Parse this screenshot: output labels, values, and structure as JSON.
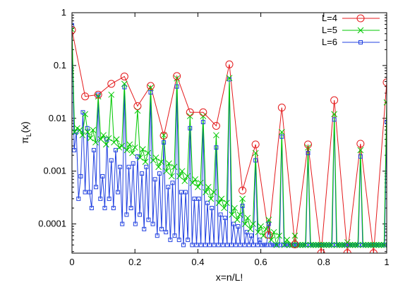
{
  "chart_data": {
    "type": "line",
    "xlabel": "x=n/L!",
    "ylabel_main": "π",
    "ylabel_sub": "L",
    "ylabel_arg": "(x)",
    "xlim": [
      0,
      1
    ],
    "ylim": [
      2.8e-05,
      1
    ],
    "yscale": "log",
    "legend_position": "top-right",
    "x_ticks": [
      {
        "value": 0,
        "label": "0"
      },
      {
        "value": 0.2,
        "label": "0.2"
      },
      {
        "value": 0.4,
        "label": "0.4"
      },
      {
        "value": 0.6,
        "label": "0.6"
      },
      {
        "value": 0.8,
        "label": "0.8"
      },
      {
        "value": 1,
        "label": "1"
      }
    ],
    "y_ticks": [
      {
        "value": 1,
        "label": "1"
      },
      {
        "value": 0.1,
        "label": "0.1"
      },
      {
        "value": 0.01,
        "label": "0.01"
      },
      {
        "value": 0.001,
        "label": "0.001"
      },
      {
        "value": 0.0001,
        "label": "0.0001"
      }
    ],
    "series": [
      {
        "name": "L=4",
        "color": "#e41a1c",
        "marker": "circle",
        "x": [
          0,
          0.0417,
          0.0833,
          0.125,
          0.1667,
          0.2083,
          0.25,
          0.2917,
          0.3333,
          0.375,
          0.4167,
          0.4583,
          0.5,
          0.5417,
          0.5833,
          0.625,
          0.6667,
          0.7083,
          0.75,
          0.7917,
          0.8333,
          0.875,
          0.9167,
          0.9583,
          1.0
        ],
        "y": [
          0.47,
          0.026,
          0.028,
          0.045,
          0.062,
          0.017,
          0.041,
          0.0047,
          0.063,
          0.013,
          0.013,
          0.0072,
          0.105,
          0.00043,
          0.0032,
          6.2e-05,
          0.016,
          4.1e-05,
          0.0032,
          2.8e-05,
          0.022,
          2.8e-05,
          0.0033,
          2.8e-05,
          0.048
        ]
      },
      {
        "name": "L=5",
        "color": "#00c800",
        "marker": "x",
        "x": [
          0,
          0.0083,
          0.0167,
          0.025,
          0.0333,
          0.0417,
          0.05,
          0.0583,
          0.0667,
          0.075,
          0.0833,
          0.0917,
          0.1,
          0.1083,
          0.1167,
          0.125,
          0.1333,
          0.1417,
          0.15,
          0.1583,
          0.1667,
          0.175,
          0.1833,
          0.1917,
          0.2,
          0.2083,
          0.2167,
          0.225,
          0.2333,
          0.2417,
          0.25,
          0.2583,
          0.2667,
          0.275,
          0.2833,
          0.2917,
          0.3,
          0.3083,
          0.3167,
          0.325,
          0.3333,
          0.3417,
          0.35,
          0.3583,
          0.3667,
          0.375,
          0.3833,
          0.3917,
          0.4,
          0.4083,
          0.4167,
          0.425,
          0.4333,
          0.4417,
          0.45,
          0.4583,
          0.4667,
          0.475,
          0.4833,
          0.4917,
          0.5,
          0.5083,
          0.5167,
          0.525,
          0.5333,
          0.5417,
          0.55,
          0.5583,
          0.5667,
          0.575,
          0.5833,
          0.5917,
          0.6,
          0.6083,
          0.6167,
          0.625,
          0.6333,
          0.6417,
          0.65,
          0.6583,
          0.6667,
          0.675,
          0.6833,
          0.6917,
          0.7,
          0.7083,
          0.7167,
          0.725,
          0.7333,
          0.7417,
          0.75,
          0.7583,
          0.7667,
          0.775,
          0.7833,
          0.7917,
          0.8,
          0.8083,
          0.8167,
          0.825,
          0.8333,
          0.8417,
          0.85,
          0.8583,
          0.8667,
          0.875,
          0.8833,
          0.8917,
          0.9,
          0.9083,
          0.9167,
          0.925,
          0.9333,
          0.9417,
          0.95,
          0.9583,
          0.9667,
          0.975,
          0.9833,
          0.9917,
          1.0
        ],
        "y": [
          0.48,
          0.0055,
          0.0065,
          0.006,
          0.0048,
          0.012,
          0.0055,
          0.0042,
          0.006,
          0.0035,
          0.026,
          0.004,
          0.0048,
          0.0032,
          0.0042,
          0.028,
          0.0035,
          0.004,
          0.0028,
          0.003,
          0.045,
          0.0025,
          0.0032,
          0.0022,
          0.0028,
          0.014,
          0.0018,
          0.0026,
          0.0015,
          0.0022,
          0.038,
          0.0016,
          0.0018,
          0.0012,
          0.0015,
          0.0048,
          0.001,
          0.0014,
          0.0008,
          0.0012,
          0.057,
          0.0008,
          0.001,
          0.00065,
          0.0008,
          0.011,
          0.0006,
          0.0007,
          0.0005,
          0.0006,
          0.011,
          0.0004,
          0.0005,
          0.0003,
          0.0004,
          0.0048,
          0.00025,
          0.0003,
          0.0002,
          0.00025,
          0.058,
          0.00015,
          0.0002,
          0.00012,
          0.00015,
          0.0003,
          0.0001,
          0.00013,
          8e-05,
          0.0001,
          0.0022,
          7e-05,
          9e-05,
          6e-05,
          8e-05,
          0.00012,
          5e-05,
          7e-05,
          4e-05,
          6e-05,
          0.0055,
          4e-05,
          5e-05,
          4e-05,
          4e-05,
          6e-05,
          4e-05,
          4e-05,
          4e-05,
          4e-05,
          0.0028,
          4e-05,
          4e-05,
          4e-05,
          4e-05,
          4e-05,
          4e-05,
          4e-05,
          4e-05,
          4e-05,
          0.012,
          4e-05,
          4e-05,
          4e-05,
          4e-05,
          4.5e-05,
          4e-05,
          4e-05,
          4e-05,
          4e-05,
          0.0025,
          4e-05,
          4e-05,
          4e-05,
          4e-05,
          4e-05,
          4e-05,
          4e-05,
          4e-05,
          4e-05,
          0.02
        ]
      },
      {
        "name": "L=6",
        "color": "#2040e0",
        "marker": "square",
        "x": [
          0,
          0.0069,
          0.0139,
          0.0208,
          0.0278,
          0.0347,
          0.0417,
          0.0486,
          0.0556,
          0.0625,
          0.0694,
          0.0764,
          0.0833,
          0.0903,
          0.0972,
          0.1042,
          0.1111,
          0.1181,
          0.125,
          0.1319,
          0.1389,
          0.1458,
          0.1528,
          0.1597,
          0.1667,
          0.1736,
          0.1806,
          0.1875,
          0.1944,
          0.2014,
          0.2083,
          0.2153,
          0.2222,
          0.2292,
          0.2361,
          0.2431,
          0.25,
          0.2569,
          0.2639,
          0.2708,
          0.2778,
          0.2847,
          0.2917,
          0.2986,
          0.3056,
          0.3125,
          0.3194,
          0.3264,
          0.3333,
          0.3403,
          0.3472,
          0.3542,
          0.3611,
          0.3681,
          0.375,
          0.3819,
          0.3889,
          0.3958,
          0.4028,
          0.4097,
          0.4167,
          0.4236,
          0.4306,
          0.4375,
          0.4444,
          0.4514,
          0.4583,
          0.4653,
          0.4722,
          0.4792,
          0.4861,
          0.4931,
          0.5,
          0.5069,
          0.5139,
          0.5208,
          0.5278,
          0.5347,
          0.5417,
          0.5486,
          0.5556,
          0.5625,
          0.5694,
          0.5764,
          0.5833,
          0.5903,
          0.5972,
          0.6042,
          0.6111,
          0.6181,
          0.625,
          0.6319,
          0.6389,
          0.6458,
          0.6528,
          0.6597,
          0.6667,
          0.6736,
          0.6806,
          0.6875,
          0.6944,
          0.7014,
          0.7083,
          0.7153,
          0.7222,
          0.7292,
          0.7361,
          0.7431,
          0.75,
          0.7569,
          0.7639,
          0.7708,
          0.7778,
          0.7847,
          0.7917,
          0.7986,
          0.8056,
          0.8125,
          0.8194,
          0.8264,
          0.8333,
          0.8403,
          0.8472,
          0.8542,
          0.8611,
          0.8681,
          0.875,
          0.8819,
          0.8889,
          0.8958,
          0.9028,
          0.9097,
          0.9167,
          0.9236,
          0.9306,
          0.9375,
          0.9444,
          0.9514,
          0.9583,
          0.9653,
          0.9722,
          0.9792,
          0.9861,
          0.9931,
          1.0
        ],
        "y": [
          0.58,
          0.0025,
          0.0055,
          0.0003,
          0.0008,
          0.013,
          0.0004,
          0.0065,
          0.0004,
          0.0002,
          0.0025,
          0.0005,
          0.028,
          0.0003,
          0.0008,
          0.0002,
          0.004,
          0.0003,
          0.0016,
          0.0002,
          0.0025,
          0.0004,
          0.0012,
          0.0001,
          0.039,
          0.00015,
          0.0012,
          0.0002,
          0.0014,
          0.0001,
          0.0019,
          0.00015,
          0.0009,
          8e-05,
          0.0012,
          0.00012,
          0.031,
          0.0001,
          0.0007,
          6e-05,
          0.0009,
          8e-05,
          0.0035,
          7e-05,
          0.0005,
          5e-05,
          0.0006,
          6e-05,
          0.04,
          5e-05,
          0.0004,
          4e-05,
          0.0004,
          5e-05,
          0.0065,
          4e-05,
          0.0003,
          4e-05,
          0.0003,
          4e-05,
          0.0085,
          4e-05,
          0.00025,
          4e-05,
          0.0002,
          4e-05,
          0.0028,
          4e-05,
          0.00015,
          4e-05,
          0.00013,
          4e-05,
          0.055,
          4e-05,
          0.0001,
          4e-05,
          9e-05,
          4e-05,
          0.00022,
          4e-05,
          7e-05,
          4e-05,
          6e-05,
          4e-05,
          0.0016,
          4e-05,
          5e-05,
          4e-05,
          4e-05,
          4e-05,
          0.0001,
          4e-05,
          4e-05,
          4e-05,
          4e-05,
          4e-05,
          0.0045,
          4e-05,
          4e-05,
          4e-05,
          4e-05,
          4e-05,
          4e-05,
          4e-05,
          4e-05,
          4e-05,
          4e-05,
          4e-05,
          0.0022,
          4e-05,
          4e-05,
          4e-05,
          4e-05,
          4e-05,
          4e-05,
          4e-05,
          4e-05,
          4e-05,
          4e-05,
          4e-05,
          0.0095,
          4e-05,
          4e-05,
          4e-05,
          4e-05,
          4e-05,
          4e-05,
          4e-05,
          4e-05,
          4e-05,
          4e-05,
          4e-05,
          0.0019,
          4e-05,
          4e-05,
          4e-05,
          4e-05,
          4e-05,
          4e-05,
          4e-05,
          4e-05,
          4e-05,
          4e-05,
          4e-05,
          0.0085
        ]
      }
    ]
  }
}
